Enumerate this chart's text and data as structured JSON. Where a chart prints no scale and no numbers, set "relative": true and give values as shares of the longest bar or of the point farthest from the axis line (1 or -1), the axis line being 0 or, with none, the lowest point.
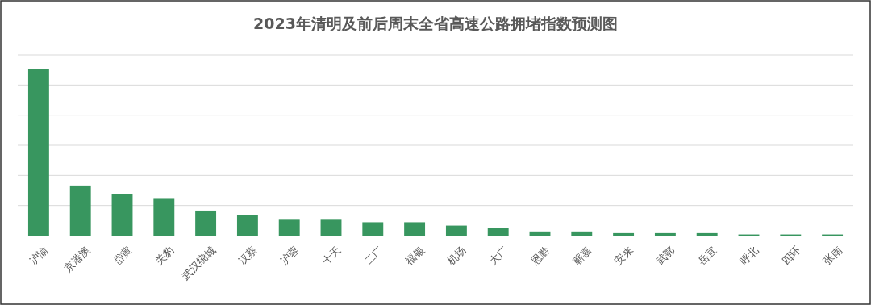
{
  "chart_data": {
    "type": "bar",
    "title": "2023年清明及前后周末全省高速公路拥堵指数预测图",
    "categories": [
      "沪渝",
      "京港澳",
      "岱黄",
      "关豹",
      "武汉绕城",
      "汉蔡",
      "沪蓉",
      "十天",
      "二广",
      "福银",
      "机场",
      "大广",
      "恩黔",
      "蕲嘉",
      "安来",
      "武鄂",
      "岳宜",
      "呼北",
      "四环",
      "张南"
    ],
    "values": [
      1,
      0.3,
      0.25,
      0.22,
      0.15,
      0.125,
      0.095,
      0.095,
      0.08,
      0.08,
      0.06,
      0.045,
      0.025,
      0.025,
      0.015,
      0.015,
      0.015,
      0.007,
      0.007,
      0.007
    ],
    "color": "#38965f",
    "relative": true,
    "grid": "y"
  }
}
